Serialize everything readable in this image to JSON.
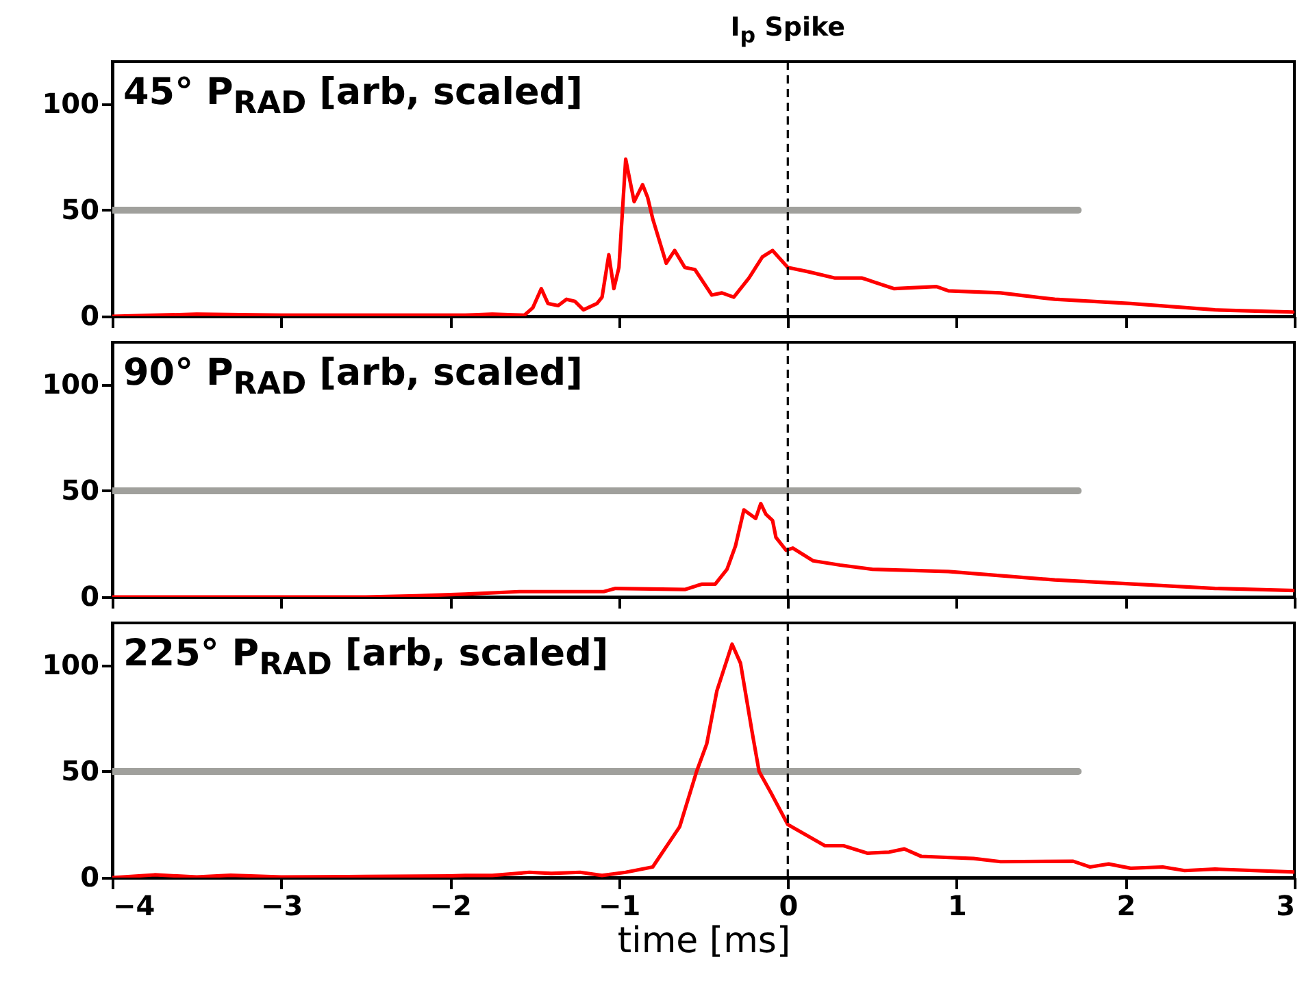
{
  "chart_data": [
    {
      "type": "line",
      "title": "45° P$_{RAD}$ [arb, scaled]",
      "xlim": [
        -4,
        3
      ],
      "xticks": [
        -4,
        -3,
        -2,
        -1,
        0,
        1,
        2,
        3
      ],
      "ylim": [
        0,
        120
      ],
      "yticks": [
        0,
        50,
        100
      ],
      "tick_labels": "y",
      "grid": false,
      "ref_lines": [
        {
          "axis": "x",
          "value": 0,
          "label": "I$_{p}$ Spike",
          "color": "#000000",
          "line_style": "dashed"
        }
      ],
      "series": [
        {
          "color": "#a0a09c",
          "line_style": "solid",
          "x": [
            -4,
            1.72
          ],
          "values": [
            50,
            50
          ]
        },
        {
          "color": "#ff0000",
          "line_style": "solid",
          "x": [
            -4,
            -3.5,
            -3,
            -2.5,
            -1.91,
            -1.75,
            -1.56,
            -1.51,
            -1.46,
            -1.42,
            -1.36,
            -1.31,
            -1.26,
            -1.21,
            -1.13,
            -1.1,
            -1.06,
            -1.03,
            -1,
            -0.96,
            -0.91,
            -0.86,
            -0.83,
            -0.8,
            -0.72,
            -0.67,
            -0.61,
            -0.55,
            -0.45,
            -0.39,
            -0.32,
            -0.23,
            -0.15,
            -0.09,
            0,
            0.12,
            0.28,
            0.44,
            0.63,
            0.88,
            0.95,
            1.26,
            1.58,
            2.03,
            2.53,
            2.99
          ],
          "values": [
            0,
            1,
            0.5,
            0.5,
            0.5,
            1,
            0.5,
            4,
            13,
            6,
            5,
            8,
            7,
            3,
            6,
            9,
            29,
            13,
            23,
            74,
            54,
            62,
            56,
            46,
            25,
            31,
            23,
            22,
            10,
            11,
            9,
            18,
            28,
            31,
            23,
            21,
            18,
            18,
            13,
            14,
            12,
            11,
            8,
            6,
            3,
            2
          ]
        }
      ]
    },
    {
      "type": "line",
      "title": "90° P$_{RAD}$ [arb, scaled]",
      "xlim": [
        -4,
        3
      ],
      "xticks": [
        -4,
        -3,
        -2,
        -1,
        0,
        1,
        2,
        3
      ],
      "ylim": [
        0,
        120
      ],
      "yticks": [
        0,
        50,
        100
      ],
      "tick_labels": "y",
      "ref_lines": [
        {
          "axis": "x",
          "value": 0,
          "color": "#000000",
          "line_style": "dashed"
        }
      ],
      "series": [
        {
          "color": "#a0a09c",
          "line_style": "solid",
          "x": [
            -4,
            1.72
          ],
          "values": [
            50,
            50
          ]
        },
        {
          "color": "#ff0000",
          "line_style": "solid",
          "x": [
            -4,
            -2.5,
            -2.2,
            -1.91,
            -1.59,
            -1.09,
            -1.02,
            -0.61,
            -0.51,
            -0.43,
            -0.36,
            -0.31,
            -0.26,
            -0.19,
            -0.16,
            -0.13,
            -0.09,
            -0.07,
            -0.01,
            0.03,
            0.15,
            0.31,
            0.5,
            0.95,
            1.58,
            2.06,
            2.53,
            3
          ],
          "values": [
            0,
            0,
            0.5,
            1.3,
            2.5,
            2.5,
            4,
            3.5,
            6,
            6,
            13,
            24,
            41,
            37,
            44,
            39,
            36,
            28,
            22,
            23,
            17,
            15,
            13,
            12,
            8,
            6,
            4,
            3
          ]
        }
      ]
    },
    {
      "type": "line",
      "title": "225° P$_{RAD}$ [arb, scaled]",
      "xlabel": "time [ms]",
      "xlim": [
        -4,
        3
      ],
      "xticks": [
        -4,
        -3,
        -2,
        -1,
        0,
        1,
        2,
        3
      ],
      "ylim": [
        0,
        120
      ],
      "yticks": [
        0,
        50,
        100
      ],
      "ref_lines": [
        {
          "axis": "x",
          "value": 0,
          "color": "#000000",
          "line_style": "dashed"
        }
      ],
      "series": [
        {
          "color": "#a0a09c",
          "line_style": "solid",
          "x": [
            -4,
            1.72
          ],
          "values": [
            50,
            50
          ]
        },
        {
          "color": "#ff0000",
          "line_style": "solid",
          "x": [
            -4,
            -3.75,
            -3.5,
            -3.3,
            -3,
            -2.5,
            -2,
            -1.91,
            -1.75,
            -1.53,
            -1.4,
            -1.23,
            -1.1,
            -0.96,
            -0.8,
            -0.64,
            -0.54,
            -0.48,
            -0.42,
            -0.33,
            -0.28,
            -0.21,
            -0.17,
            -0.1,
            0,
            0.22,
            0.33,
            0.47,
            0.6,
            0.69,
            0.79,
            1.1,
            1.26,
            1.69,
            1.79,
            1.9,
            2.03,
            2.22,
            2.35,
            2.53,
            3
          ],
          "values": [
            0,
            1.3,
            0.3,
            1.1,
            0.3,
            0.5,
            0.8,
            1,
            1,
            2.5,
            2,
            2.5,
            1,
            2.5,
            5,
            24,
            50,
            63,
            88,
            110,
            101,
            68,
            50,
            40,
            25,
            15,
            15,
            11.5,
            12,
            13.5,
            10,
            9,
            7.5,
            7.7,
            5,
            6.4,
            4.4,
            5,
            3.3,
            4,
            2.6
          ]
        }
      ]
    }
  ]
}
